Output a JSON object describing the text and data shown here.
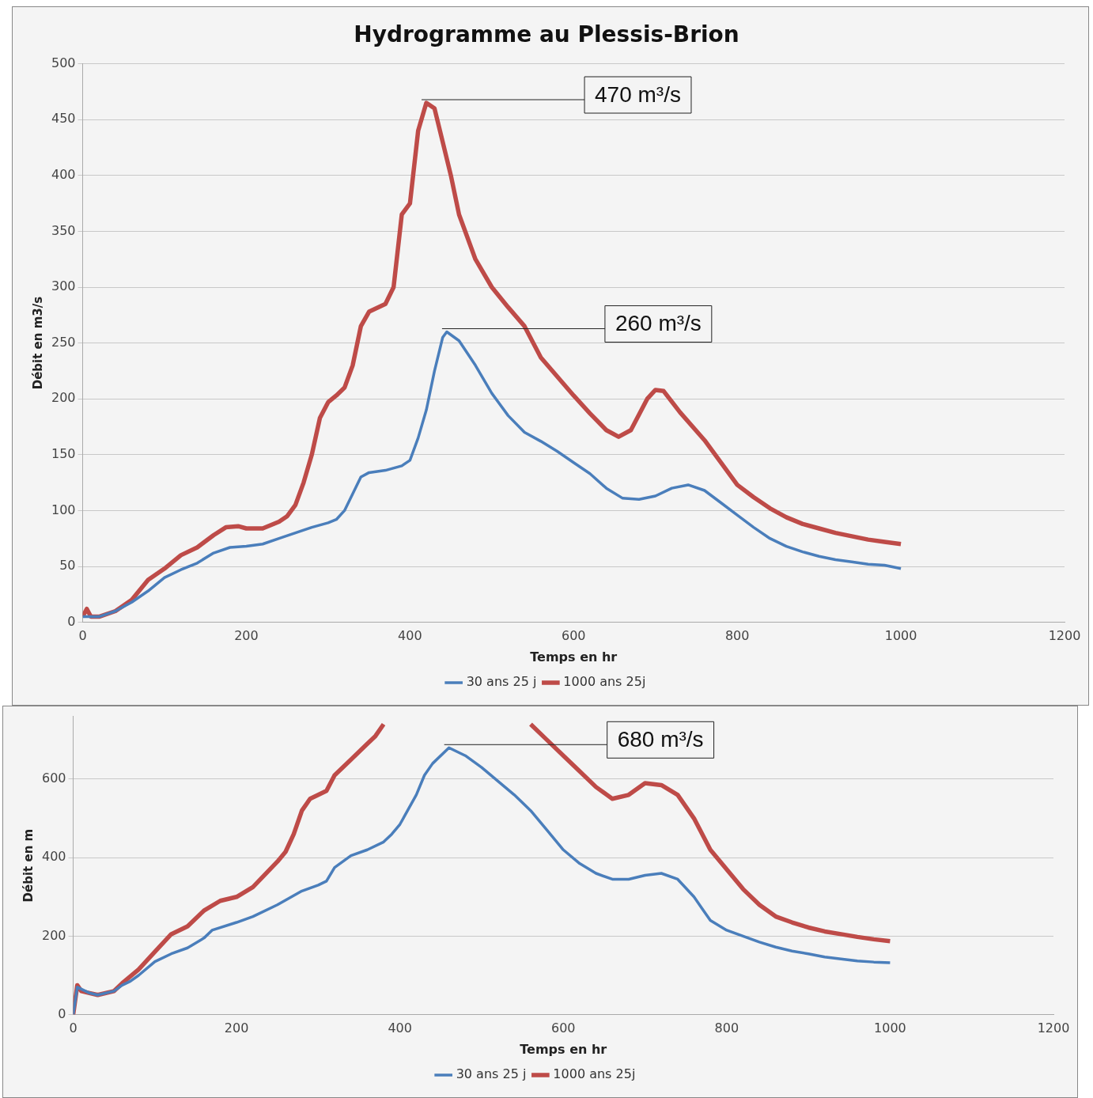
{
  "chart_data": [
    {
      "type": "line",
      "title": "Hydrogramme au Plessis-Brion",
      "xlabel": "Temps en hr",
      "ylabel": "Débit en m3/s",
      "xlim": [
        0,
        1200
      ],
      "xticks": [
        0,
        200,
        400,
        600,
        800,
        1000,
        1200
      ],
      "ylim": [
        0,
        500
      ],
      "yticks": [
        0,
        50,
        100,
        150,
        200,
        250,
        300,
        350,
        400,
        450,
        500
      ],
      "grid": "y",
      "legend": "bottom",
      "marker": "none",
      "line_style": "solid",
      "annotations": [
        {
          "text": "470 m³/s",
          "x": 420,
          "y": 465
        },
        {
          "text": "260 m³/s",
          "x": 445,
          "y": 260
        }
      ],
      "series": [
        {
          "name": "30 ans 25 j",
          "color": "#4a7ebb",
          "x": [
            0,
            20,
            40,
            60,
            80,
            100,
            120,
            140,
            160,
            180,
            200,
            220,
            240,
            260,
            280,
            300,
            310,
            320,
            330,
            340,
            350,
            370,
            390,
            400,
            410,
            420,
            430,
            440,
            445,
            460,
            480,
            500,
            520,
            540,
            560,
            580,
            600,
            620,
            640,
            660,
            680,
            700,
            720,
            740,
            760,
            780,
            800,
            820,
            840,
            860,
            880,
            900,
            920,
            940,
            960,
            980,
            1000
          ],
          "values": [
            5,
            5,
            10,
            18,
            28,
            40,
            47,
            53,
            62,
            67,
            68,
            70,
            75,
            80,
            85,
            89,
            92,
            100,
            115,
            130,
            134,
            136,
            140,
            145,
            165,
            190,
            225,
            255,
            260,
            252,
            230,
            205,
            185,
            170,
            162,
            153,
            143,
            133,
            120,
            111,
            110,
            113,
            120,
            123,
            118,
            107,
            96,
            85,
            75,
            68,
            63,
            59,
            56,
            54,
            52,
            51,
            48
          ]
        },
        {
          "name": "1000 ans 25j",
          "color": "#be4b48",
          "x": [
            0,
            5,
            10,
            20,
            40,
            60,
            80,
            100,
            120,
            140,
            160,
            175,
            190,
            200,
            220,
            240,
            250,
            260,
            270,
            280,
            290,
            300,
            310,
            320,
            330,
            340,
            350,
            370,
            380,
            390,
            400,
            410,
            420,
            430,
            440,
            450,
            460,
            480,
            500,
            520,
            540,
            560,
            580,
            600,
            620,
            640,
            655,
            670,
            690,
            700,
            710,
            730,
            760,
            780,
            800,
            820,
            840,
            860,
            880,
            900,
            920,
            940,
            960,
            980,
            1000
          ],
          "values": [
            5,
            12,
            5,
            5,
            10,
            20,
            38,
            48,
            60,
            67,
            78,
            85,
            86,
            84,
            84,
            90,
            95,
            105,
            125,
            150,
            183,
            197,
            203,
            210,
            230,
            265,
            278,
            285,
            300,
            365,
            375,
            440,
            465,
            460,
            430,
            400,
            365,
            325,
            300,
            282,
            265,
            237,
            220,
            203,
            187,
            172,
            166,
            172,
            200,
            208,
            207,
            188,
            163,
            143,
            123,
            112,
            102,
            94,
            88,
            84,
            80,
            77,
            74,
            72,
            70
          ]
        }
      ]
    },
    {
      "type": "line",
      "xlabel": "Temps en hr",
      "ylabel": "Débit en m",
      "xlim": [
        0,
        1200
      ],
      "xticks": [
        0,
        200,
        400,
        600,
        800,
        1000,
        1200
      ],
      "ylim": [
        0,
        760
      ],
      "yticks": [
        0,
        200,
        400,
        600
      ],
      "grid": "y",
      "legend": "bottom",
      "marker": "none",
      "line_style": "solid",
      "annotations": [
        {
          "text": "680 m³/s",
          "x": 460,
          "y": 680
        }
      ],
      "series": [
        {
          "name": "30 ans 25 j",
          "color": "#4a7ebb",
          "x": [
            0,
            5,
            10,
            20,
            30,
            50,
            60,
            70,
            80,
            100,
            120,
            140,
            160,
            170,
            200,
            220,
            250,
            280,
            300,
            310,
            320,
            340,
            360,
            380,
            390,
            400,
            420,
            430,
            440,
            460,
            480,
            500,
            540,
            560,
            580,
            600,
            620,
            640,
            660,
            680,
            700,
            720,
            740,
            760,
            770,
            780,
            800,
            820,
            840,
            860,
            880,
            900,
            920,
            940,
            960,
            980,
            1000
          ],
          "values": [
            0,
            70,
            65,
            55,
            50,
            60,
            75,
            85,
            100,
            135,
            155,
            170,
            195,
            215,
            235,
            250,
            280,
            315,
            330,
            340,
            375,
            405,
            420,
            440,
            460,
            485,
            560,
            610,
            640,
            680,
            660,
            630,
            560,
            520,
            470,
            420,
            385,
            360,
            345,
            345,
            355,
            360,
            345,
            300,
            270,
            240,
            215,
            200,
            185,
            172,
            162,
            155,
            147,
            142,
            137,
            134,
            132
          ]
        },
        {
          "name": "1000 ans 25j",
          "color": "#be4b48",
          "x": [
            0,
            5,
            10,
            20,
            30,
            50,
            60,
            80,
            100,
            120,
            140,
            160,
            180,
            200,
            220,
            250,
            260,
            270,
            280,
            290,
            300,
            310,
            320,
            340,
            360,
            370,
            380,
            470,
            560,
            580,
            600,
            620,
            640,
            660,
            680,
            700,
            720,
            740,
            760,
            780,
            800,
            820,
            840,
            860,
            880,
            900,
            920,
            940,
            960,
            980,
            1000
          ],
          "values": [
            0,
            75,
            60,
            55,
            50,
            60,
            80,
            115,
            160,
            205,
            225,
            265,
            290,
            300,
            325,
            390,
            415,
            460,
            520,
            550,
            560,
            570,
            610,
            650,
            690,
            710,
            740,
            null,
            740,
            700,
            660,
            620,
            580,
            550,
            560,
            590,
            585,
            560,
            500,
            420,
            370,
            320,
            280,
            250,
            235,
            222,
            212,
            205,
            198,
            192,
            187
          ]
        }
      ]
    }
  ]
}
